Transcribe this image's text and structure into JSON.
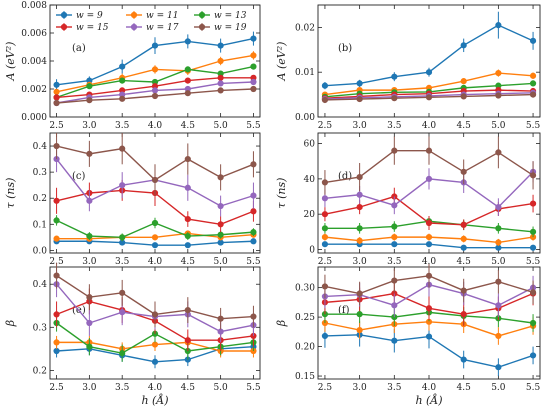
{
  "chart_data": [
    {
      "type": "line",
      "panel_label": "(a)",
      "ylabel": "A (eV²)",
      "xlabel": "",
      "x": [
        2.5,
        3.0,
        3.5,
        4.0,
        4.5,
        5.0,
        5.5
      ],
      "xlim": [
        2.4,
        5.6
      ],
      "ylim": [
        0,
        0.008
      ],
      "yticks": [
        0,
        0.002,
        0.004,
        0.006,
        0.008
      ],
      "ytick_labels": [
        "0.000",
        "0.002",
        "0.004",
        "0.006",
        "0.008"
      ],
      "legend": "top",
      "series": [
        {
          "name": "w = 9",
          "color": "#1f77b4",
          "values": [
            0.0023,
            0.0026,
            0.0036,
            0.0051,
            0.0054,
            0.0051,
            0.0056
          ],
          "errors": [
            0.0004,
            0.0003,
            0.0005,
            0.0006,
            0.0005,
            0.0005,
            0.0005
          ]
        },
        {
          "name": "w = 11",
          "color": "#ff7f0e",
          "values": [
            0.0018,
            0.0023,
            0.0028,
            0.0034,
            0.0033,
            0.004,
            0.0044
          ],
          "errors": [
            0.0002,
            0.0002,
            0.0003,
            0.0003,
            0.0003,
            0.0003,
            0.0003
          ]
        },
        {
          "name": "w = 13",
          "color": "#2ca02c",
          "values": [
            0.0014,
            0.0022,
            0.0026,
            0.0025,
            0.0034,
            0.0031,
            0.0036
          ],
          "errors": [
            0.0002,
            0.0002,
            0.0002,
            0.0002,
            0.0002,
            0.0002,
            0.0002
          ]
        },
        {
          "name": "w = 15",
          "color": "#d62728",
          "values": [
            0.0014,
            0.0016,
            0.0019,
            0.0022,
            0.0026,
            0.0028,
            0.0028
          ],
          "errors": [
            0.0002,
            0.0002,
            0.0002,
            0.0002,
            0.0002,
            0.0002,
            0.0002
          ]
        },
        {
          "name": "w = 17",
          "color": "#9467bd",
          "values": [
            0.001,
            0.0014,
            0.0016,
            0.0019,
            0.002,
            0.0024,
            0.0025
          ],
          "errors": [
            0.0001,
            0.0001,
            0.0001,
            0.0002,
            0.0002,
            0.0002,
            0.0002
          ]
        },
        {
          "name": "w = 19",
          "color": "#8c564b",
          "values": [
            0.001,
            0.0012,
            0.0013,
            0.0015,
            0.0017,
            0.0019,
            0.002
          ],
          "errors": [
            0.0001,
            0.0001,
            0.0001,
            0.0001,
            0.0001,
            0.0001,
            0.0001
          ]
        }
      ]
    },
    {
      "type": "line",
      "panel_label": "(b)",
      "ylabel": "A (eV²)",
      "xlabel": "",
      "x": [
        2.5,
        3.0,
        3.5,
        4.0,
        4.5,
        5.0,
        5.5
      ],
      "xlim": [
        2.4,
        5.6
      ],
      "ylim": [
        0,
        0.025
      ],
      "yticks": [
        0.0,
        0.01,
        0.02
      ],
      "ytick_labels": [
        "0.00",
        "0.01",
        "0.02"
      ],
      "series": [
        {
          "name": "w = 9",
          "color": "#1f77b4",
          "values": [
            0.007,
            0.0075,
            0.009,
            0.01,
            0.016,
            0.0205,
            0.017
          ],
          "errors": [
            0.0008,
            0.0008,
            0.001,
            0.001,
            0.0015,
            0.003,
            0.002
          ]
        },
        {
          "name": "w = 11",
          "color": "#ff7f0e",
          "values": [
            0.005,
            0.006,
            0.006,
            0.0065,
            0.008,
            0.0098,
            0.0092
          ],
          "errors": [
            0.0005,
            0.0005,
            0.0005,
            0.0005,
            0.0006,
            0.0008,
            0.0007
          ]
        },
        {
          "name": "w = 13",
          "color": "#2ca02c",
          "values": [
            0.0045,
            0.0052,
            0.0055,
            0.0056,
            0.0065,
            0.007,
            0.0075
          ],
          "errors": [
            0.0004,
            0.0004,
            0.0004,
            0.0004,
            0.0005,
            0.0005,
            0.0005
          ]
        },
        {
          "name": "w = 15",
          "color": "#d62728",
          "values": [
            0.0042,
            0.0046,
            0.005,
            0.0052,
            0.0058,
            0.006,
            0.0058
          ],
          "errors": [
            0.0004,
            0.0004,
            0.0004,
            0.0004,
            0.0004,
            0.0004,
            0.0004
          ]
        },
        {
          "name": "w = 17",
          "color": "#9467bd",
          "values": [
            0.004,
            0.0043,
            0.0045,
            0.0047,
            0.005,
            0.0052,
            0.0054
          ],
          "errors": [
            0.0003,
            0.0003,
            0.0003,
            0.0003,
            0.0003,
            0.0003,
            0.0003
          ]
        },
        {
          "name": "w = 19",
          "color": "#8c564b",
          "values": [
            0.0038,
            0.004,
            0.0042,
            0.0044,
            0.0046,
            0.0048,
            0.005
          ],
          "errors": [
            0.0003,
            0.0003,
            0.0003,
            0.0003,
            0.0003,
            0.0003,
            0.0003
          ]
        }
      ]
    },
    {
      "type": "line",
      "panel_label": "(c)",
      "ylabel": "τ (ns)",
      "xlabel": "",
      "x": [
        2.5,
        3.0,
        3.5,
        4.0,
        4.5,
        5.0,
        5.5
      ],
      "xlim": [
        2.4,
        5.6
      ],
      "ylim": [
        -0.01,
        0.45
      ],
      "yticks": [
        0.0,
        0.1,
        0.2,
        0.3,
        0.4
      ],
      "ytick_labels": [
        "0.0",
        "0.1",
        "0.2",
        "0.3",
        "0.4"
      ],
      "series": [
        {
          "name": "w = 9",
          "color": "#1f77b4",
          "values": [
            0.035,
            0.035,
            0.03,
            0.02,
            0.02,
            0.03,
            0.035
          ],
          "errors": [
            0.01,
            0.01,
            0.01,
            0.01,
            0.01,
            0.01,
            0.01
          ]
        },
        {
          "name": "w = 11",
          "color": "#ff7f0e",
          "values": [
            0.045,
            0.045,
            0.05,
            0.05,
            0.065,
            0.05,
            0.06
          ],
          "errors": [
            0.01,
            0.01,
            0.01,
            0.01,
            0.01,
            0.01,
            0.01
          ]
        },
        {
          "name": "w = 13",
          "color": "#2ca02c",
          "values": [
            0.115,
            0.055,
            0.05,
            0.105,
            0.055,
            0.06,
            0.07
          ],
          "errors": [
            0.02,
            0.015,
            0.015,
            0.02,
            0.015,
            0.015,
            0.015
          ]
        },
        {
          "name": "w = 15",
          "color": "#d62728",
          "values": [
            0.19,
            0.22,
            0.23,
            0.22,
            0.12,
            0.1,
            0.15
          ],
          "errors": [
            0.05,
            0.04,
            0.04,
            0.05,
            0.03,
            0.03,
            0.04
          ]
        },
        {
          "name": "w = 17",
          "color": "#9467bd",
          "values": [
            0.35,
            0.19,
            0.25,
            0.27,
            0.24,
            0.17,
            0.21
          ],
          "errors": [
            0.05,
            0.04,
            0.05,
            0.05,
            0.05,
            0.04,
            0.05
          ]
        },
        {
          "name": "w = 19",
          "color": "#8c564b",
          "values": [
            0.4,
            0.37,
            0.39,
            0.27,
            0.35,
            0.28,
            0.33
          ],
          "errors": [
            0.05,
            0.05,
            0.06,
            0.06,
            0.06,
            0.05,
            0.05
          ]
        }
      ]
    },
    {
      "type": "line",
      "panel_label": "(d)",
      "ylabel": "τ (ns)",
      "xlabel": "",
      "x": [
        2.5,
        3.0,
        3.5,
        4.0,
        4.5,
        5.0,
        5.5
      ],
      "xlim": [
        2.4,
        5.6
      ],
      "ylim": [
        -2,
        66
      ],
      "yticks": [
        0,
        20,
        40,
        60
      ],
      "ytick_labels": [
        "0",
        "20",
        "40",
        "60"
      ],
      "series": [
        {
          "name": "w = 9",
          "color": "#1f77b4",
          "values": [
            3,
            3,
            3,
            3,
            1,
            1,
            1
          ],
          "errors": [
            1,
            1,
            1,
            1,
            1,
            1,
            1
          ]
        },
        {
          "name": "w = 11",
          "color": "#ff7f0e",
          "values": [
            7,
            5,
            7,
            7,
            6,
            4,
            7
          ],
          "errors": [
            2,
            2,
            2,
            2,
            2,
            2,
            2
          ]
        },
        {
          "name": "w = 13",
          "color": "#2ca02c",
          "values": [
            12,
            12,
            13,
            16,
            14,
            12,
            10
          ],
          "errors": [
            3,
            3,
            3,
            3,
            3,
            3,
            3
          ]
        },
        {
          "name": "w = 15",
          "color": "#d62728",
          "values": [
            20,
            24,
            30,
            15,
            14,
            23,
            26
          ],
          "errors": [
            4,
            4,
            5,
            4,
            3,
            4,
            5
          ]
        },
        {
          "name": "w = 17",
          "color": "#9467bd",
          "values": [
            29,
            31,
            25,
            40,
            38,
            24,
            44
          ],
          "errors": [
            5,
            5,
            5,
            6,
            6,
            5,
            6
          ]
        },
        {
          "name": "w = 19",
          "color": "#8c564b",
          "values": [
            38,
            41,
            56,
            56,
            44,
            55,
            42
          ],
          "errors": [
            7,
            8,
            8,
            8,
            7,
            9,
            8
          ]
        }
      ]
    },
    {
      "type": "line",
      "panel_label": "(e)",
      "ylabel": "β",
      "xlabel": "h (Å)",
      "x": [
        2.5,
        3.0,
        3.5,
        4.0,
        4.5,
        5.0,
        5.5
      ],
      "xlim": [
        2.4,
        5.6
      ],
      "ylim": [
        0.18,
        0.44
      ],
      "yticks": [
        0.2,
        0.3,
        0.4
      ],
      "ytick_labels": [
        "0.2",
        "0.3",
        "0.4"
      ],
      "series": [
        {
          "name": "w = 9",
          "color": "#1f77b4",
          "values": [
            0.245,
            0.25,
            0.235,
            0.22,
            0.225,
            0.25,
            0.255
          ],
          "errors": [
            0.015,
            0.015,
            0.015,
            0.015,
            0.015,
            0.015,
            0.015
          ]
        },
        {
          "name": "w = 11",
          "color": "#ff7f0e",
          "values": [
            0.265,
            0.265,
            0.25,
            0.26,
            0.265,
            0.245,
            0.245
          ],
          "errors": [
            0.015,
            0.015,
            0.015,
            0.015,
            0.015,
            0.015,
            0.015
          ]
        },
        {
          "name": "w = 13",
          "color": "#2ca02c",
          "values": [
            0.31,
            0.255,
            0.24,
            0.285,
            0.245,
            0.255,
            0.265
          ],
          "errors": [
            0.02,
            0.02,
            0.02,
            0.02,
            0.02,
            0.02,
            0.02
          ]
        },
        {
          "name": "w = 15",
          "color": "#d62728",
          "values": [
            0.33,
            0.36,
            0.34,
            0.315,
            0.27,
            0.27,
            0.28
          ],
          "errors": [
            0.03,
            0.03,
            0.03,
            0.03,
            0.025,
            0.025,
            0.025
          ]
        },
        {
          "name": "w = 17",
          "color": "#9467bd",
          "values": [
            0.4,
            0.31,
            0.335,
            0.325,
            0.33,
            0.29,
            0.305
          ],
          "errors": [
            0.03,
            0.03,
            0.03,
            0.03,
            0.03,
            0.025,
            0.025
          ]
        },
        {
          "name": "w = 19",
          "color": "#8c564b",
          "values": [
            0.42,
            0.37,
            0.38,
            0.33,
            0.34,
            0.32,
            0.325
          ],
          "errors": [
            0.03,
            0.03,
            0.03,
            0.03,
            0.03,
            0.025,
            0.025
          ]
        }
      ]
    },
    {
      "type": "line",
      "panel_label": "(f)",
      "ylabel": "β",
      "xlabel": "h (Å)",
      "x": [
        2.5,
        3.0,
        3.5,
        4.0,
        4.5,
        5.0,
        5.5
      ],
      "xlim": [
        2.4,
        5.6
      ],
      "ylim": [
        0.145,
        0.335
      ],
      "yticks": [
        0.15,
        0.2,
        0.25,
        0.3
      ],
      "ytick_labels": [
        "0.15",
        "0.20",
        "0.25",
        "0.30"
      ],
      "series": [
        {
          "name": "w = 9",
          "color": "#1f77b4",
          "values": [
            0.218,
            0.22,
            0.21,
            0.217,
            0.178,
            0.165,
            0.185
          ],
          "errors": [
            0.02,
            0.02,
            0.02,
            0.02,
            0.015,
            0.015,
            0.015
          ]
        },
        {
          "name": "w = 11",
          "color": "#ff7f0e",
          "values": [
            0.24,
            0.228,
            0.238,
            0.242,
            0.238,
            0.218,
            0.235
          ],
          "errors": [
            0.015,
            0.015,
            0.015,
            0.015,
            0.015,
            0.015,
            0.015
          ]
        },
        {
          "name": "w = 13",
          "color": "#2ca02c",
          "values": [
            0.255,
            0.255,
            0.25,
            0.258,
            0.252,
            0.248,
            0.24
          ],
          "errors": [
            0.015,
            0.015,
            0.015,
            0.015,
            0.015,
            0.015,
            0.015
          ]
        },
        {
          "name": "w = 15",
          "color": "#d62728",
          "values": [
            0.275,
            0.28,
            0.29,
            0.265,
            0.255,
            0.265,
            0.29
          ],
          "errors": [
            0.02,
            0.02,
            0.02,
            0.02,
            0.02,
            0.02,
            0.02
          ]
        },
        {
          "name": "w = 17",
          "color": "#9467bd",
          "values": [
            0.285,
            0.288,
            0.27,
            0.305,
            0.29,
            0.27,
            0.3
          ],
          "errors": [
            0.02,
            0.02,
            0.02,
            0.02,
            0.02,
            0.02,
            0.02
          ]
        },
        {
          "name": "w = 19",
          "color": "#8c564b",
          "values": [
            0.302,
            0.29,
            0.312,
            0.32,
            0.295,
            0.31,
            0.292
          ],
          "errors": [
            0.02,
            0.02,
            0.02,
            0.02,
            0.02,
            0.02,
            0.02
          ]
        }
      ]
    }
  ]
}
